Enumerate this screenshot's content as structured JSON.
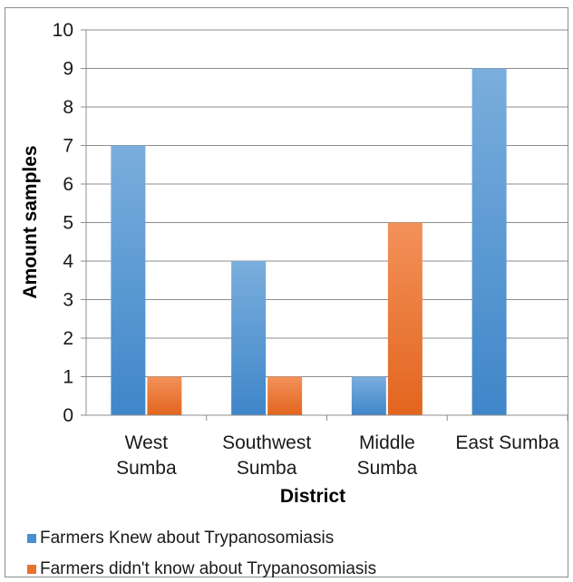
{
  "chart_data": {
    "type": "bar",
    "categories": [
      [
        "West",
        "Sumba"
      ],
      [
        "Southwest",
        "Sumba"
      ],
      [
        "Middle",
        "Sumba"
      ],
      [
        "East Sumba"
      ]
    ],
    "series": [
      {
        "name": "Farmers Knew about Trypanosomiasis",
        "values": [
          7,
          4,
          1,
          9
        ],
        "color": "#5b9bd5"
      },
      {
        "name": "Farmers didn't know about  Trypanosomiasis",
        "values": [
          1,
          1,
          5,
          0
        ],
        "color": "#ed7d31"
      }
    ],
    "xlabel": "District",
    "ylabel": "Amount samples",
    "ylim": [
      0,
      10
    ],
    "yticks": [
      0,
      1,
      2,
      3,
      4,
      5,
      6,
      7,
      8,
      9,
      10
    ],
    "grid": "horizontal",
    "legend_position": "bottom-left"
  }
}
